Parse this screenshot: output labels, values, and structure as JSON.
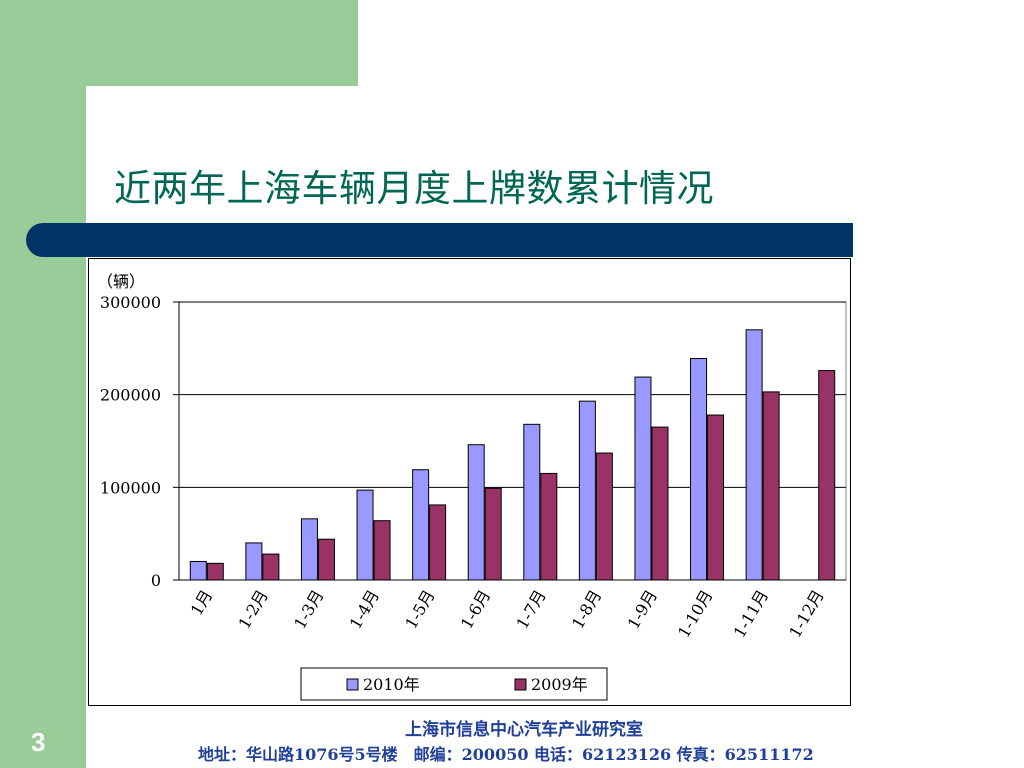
{
  "slide": {
    "title": "近两年上海车辆月度上牌数累计情况",
    "page_number": "3"
  },
  "footer": {
    "organization": "上海市信息中心汽车产业研究室",
    "address": "地址：华山路1076号5号楼　邮编：200050  电话：62123126  传真：62511172"
  },
  "colors": {
    "green": "#99cc99",
    "navy": "#003366",
    "title": "#006655",
    "footer": "#1f3f99",
    "series_2010": "#9999ff",
    "series_2009": "#993366"
  },
  "chart_data": {
    "type": "bar",
    "unit_label": "（辆）",
    "categories": [
      "1月",
      "1-2月",
      "1-3月",
      "1-4月",
      "1-5月",
      "1-6月",
      "1-7月",
      "1-8月",
      "1-9月",
      "1-10月",
      "1-11月",
      "1-12月"
    ],
    "series": [
      {
        "name": "2010年",
        "color": "#9999ff",
        "values": [
          20000,
          40000,
          66000,
          97000,
          119000,
          146000,
          168000,
          193000,
          219000,
          239000,
          270000,
          null
        ]
      },
      {
        "name": "2009年",
        "color": "#993366",
        "values": [
          18000,
          28000,
          44000,
          64000,
          81000,
          99000,
          115000,
          137000,
          165000,
          178000,
          203000,
          226000
        ]
      }
    ],
    "yticks": [
      0,
      100000,
      200000,
      300000
    ],
    "ylim": [
      0,
      300000
    ],
    "grid": true,
    "legend_position": "bottom"
  }
}
